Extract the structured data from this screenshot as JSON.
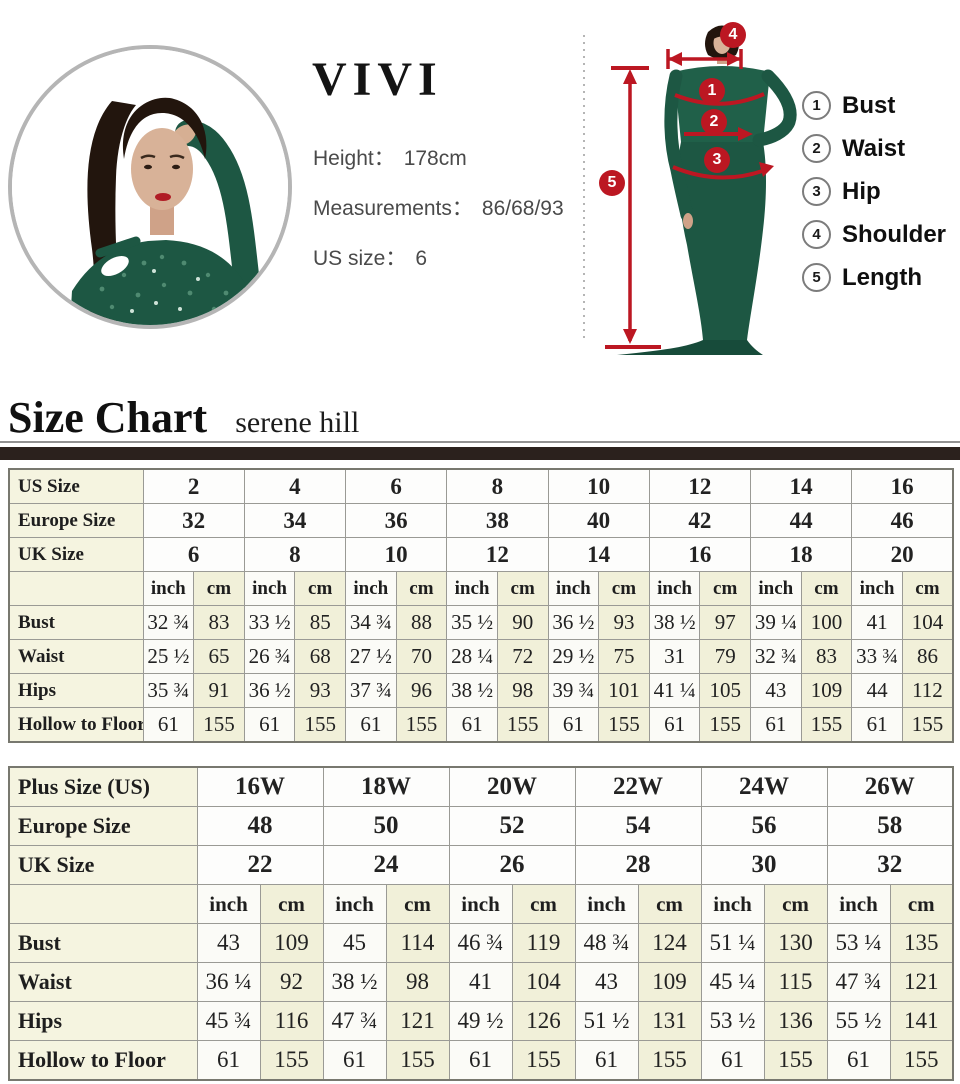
{
  "model_info": {
    "brand": "VIVI",
    "lines": [
      {
        "label": "Height：",
        "value": "178cm"
      },
      {
        "label": "Measurements：",
        "value": "86/68/93"
      },
      {
        "label": "US size：",
        "value": "6"
      }
    ]
  },
  "legend": {
    "items": [
      {
        "num": "1",
        "label": "Bust"
      },
      {
        "num": "2",
        "label": "Waist"
      },
      {
        "num": "3",
        "label": "Hip"
      },
      {
        "num": "4",
        "label": "Shoulder"
      },
      {
        "num": "5",
        "label": "Length"
      }
    ]
  },
  "figure": {
    "markers": {
      "bust": "1",
      "waist": "2",
      "hip": "3",
      "shoulder": "4",
      "length": "5"
    }
  },
  "heading": {
    "title": "Size Chart",
    "subtitle": "serene hill"
  },
  "chart_data": [
    {
      "type": "table",
      "name": "standard-sizes",
      "size_rows": [
        {
          "label": "US Size",
          "values": [
            "2",
            "4",
            "6",
            "8",
            "10",
            "12",
            "14",
            "16"
          ]
        },
        {
          "label": "Europe Size",
          "values": [
            "32",
            "34",
            "36",
            "38",
            "40",
            "42",
            "44",
            "46"
          ]
        },
        {
          "label": "UK Size",
          "values": [
            "6",
            "8",
            "10",
            "12",
            "14",
            "16",
            "18",
            "20"
          ]
        }
      ],
      "unit_labels": [
        "inch",
        "cm"
      ],
      "measurement_rows": [
        {
          "label": "Bust",
          "inch": [
            "32 ¾",
            "33 ½",
            "34 ¾",
            "35 ½",
            "36 ½",
            "38 ½",
            "39 ¼",
            "41"
          ],
          "cm": [
            "83",
            "85",
            "88",
            "90",
            "93",
            "97",
            "100",
            "104"
          ]
        },
        {
          "label": "Waist",
          "inch": [
            "25 ½",
            "26 ¾",
            "27 ½",
            "28 ¼",
            "29 ½",
            "31",
            "32 ¾",
            "33 ¾"
          ],
          "cm": [
            "65",
            "68",
            "70",
            "72",
            "75",
            "79",
            "83",
            "86"
          ]
        },
        {
          "label": "Hips",
          "inch": [
            "35 ¾",
            "36 ½",
            "37 ¾",
            "38 ½",
            "39 ¾",
            "41 ¼",
            "43",
            "44"
          ],
          "cm": [
            "91",
            "93",
            "96",
            "98",
            "101",
            "105",
            "109",
            "112"
          ]
        },
        {
          "label": "Hollow to Floor",
          "inch": [
            "61",
            "61",
            "61",
            "61",
            "61",
            "61",
            "61",
            "61"
          ],
          "cm": [
            "155",
            "155",
            "155",
            "155",
            "155",
            "155",
            "155",
            "155"
          ]
        }
      ]
    },
    {
      "type": "table",
      "name": "plus-sizes",
      "size_rows": [
        {
          "label": "Plus Size (US)",
          "values": [
            "16W",
            "18W",
            "20W",
            "22W",
            "24W",
            "26W"
          ]
        },
        {
          "label": "Europe Size",
          "values": [
            "48",
            "50",
            "52",
            "54",
            "56",
            "58"
          ]
        },
        {
          "label": "UK Size",
          "values": [
            "22",
            "24",
            "26",
            "28",
            "30",
            "32"
          ]
        }
      ],
      "unit_labels": [
        "inch",
        "cm"
      ],
      "measurement_rows": [
        {
          "label": "Bust",
          "inch": [
            "43",
            "45",
            "46 ¾",
            "48 ¾",
            "51 ¼",
            "53 ¼"
          ],
          "cm": [
            "109",
            "114",
            "119",
            "124",
            "130",
            "135"
          ]
        },
        {
          "label": "Waist",
          "inch": [
            "36 ¼",
            "38 ½",
            "41",
            "43",
            "45 ¼",
            "47 ¾"
          ],
          "cm": [
            "92",
            "98",
            "104",
            "109",
            "115",
            "121"
          ]
        },
        {
          "label": "Hips",
          "inch": [
            "45 ¾",
            "47 ¾",
            "49 ½",
            "51 ½",
            "53 ½",
            "55 ½"
          ],
          "cm": [
            "116",
            "121",
            "126",
            "131",
            "136",
            "141"
          ]
        },
        {
          "label": "Hollow to Floor",
          "inch": [
            "61",
            "61",
            "61",
            "61",
            "61",
            "61"
          ],
          "cm": [
            "155",
            "155",
            "155",
            "155",
            "155",
            "155"
          ]
        }
      ]
    }
  ],
  "colors": {
    "accent_red": "#bc1722",
    "dress_green": "#1d5743",
    "table_cream": "#f5f4e0",
    "divider_dark": "#2b211d"
  }
}
